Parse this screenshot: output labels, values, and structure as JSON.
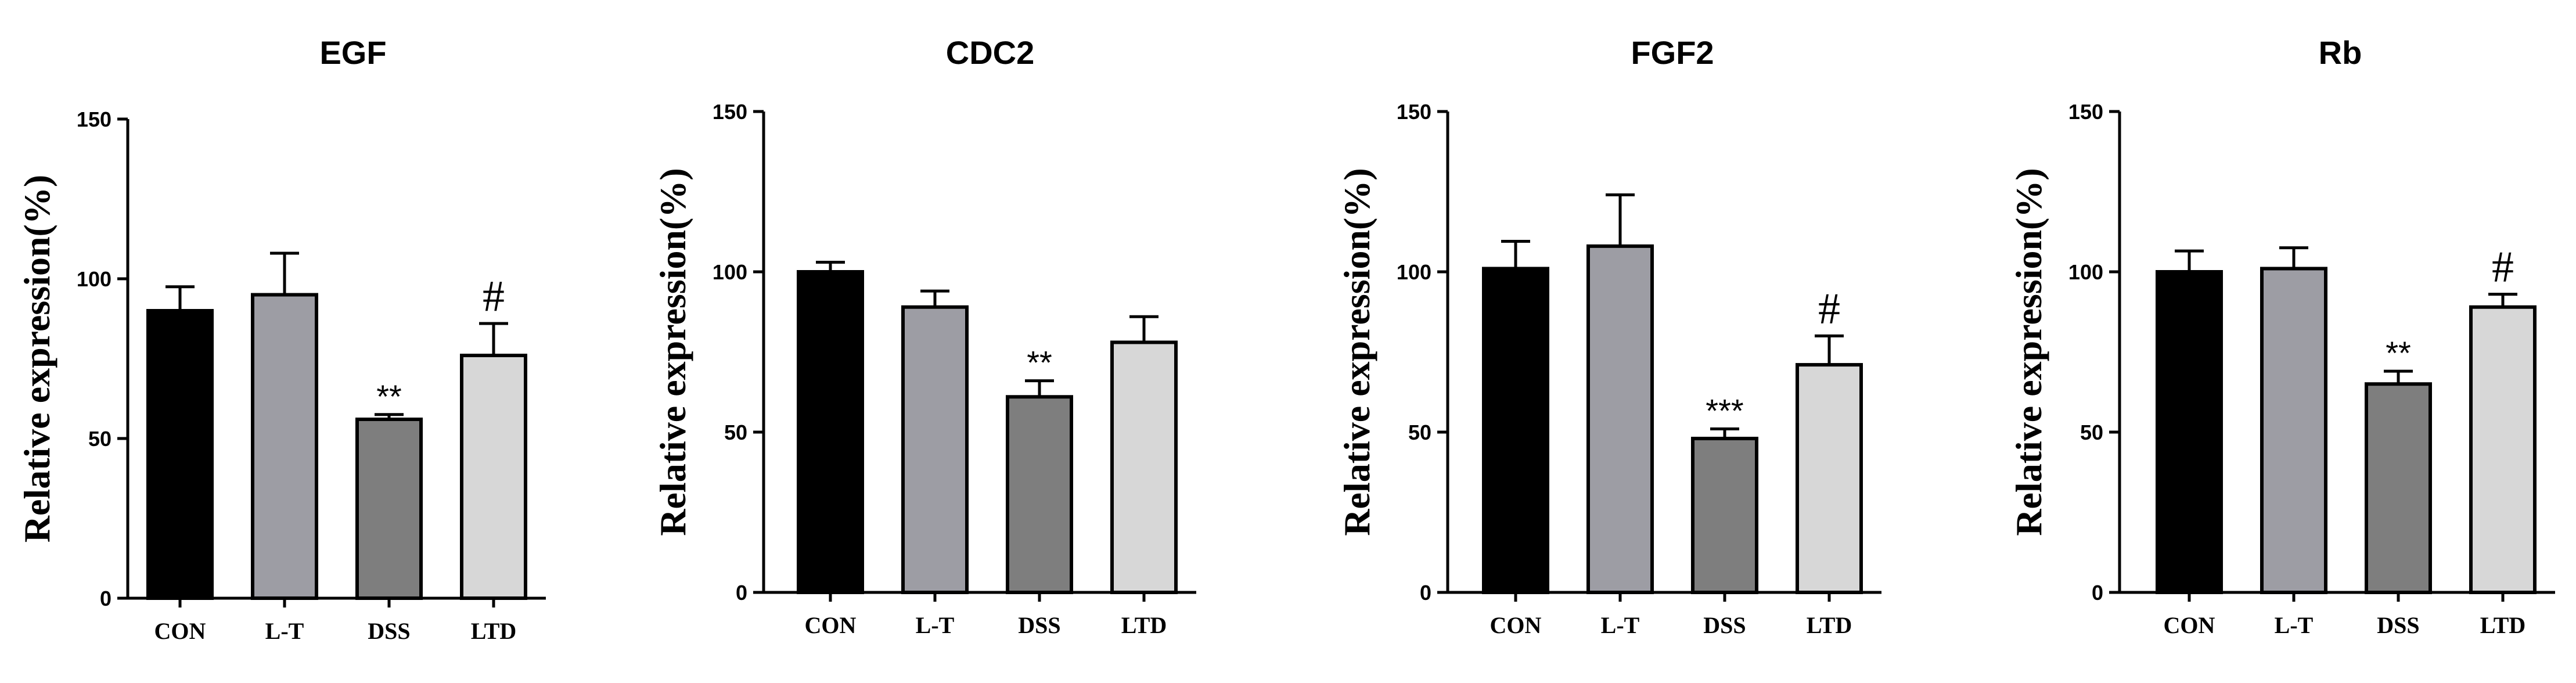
{
  "chart_data": [
    {
      "type": "bar",
      "title": "EGF",
      "ylabel": "Relative expression(%)",
      "xlabel": "",
      "ylim": [
        0,
        150
      ],
      "yticks": [
        0,
        50,
        100,
        150
      ],
      "categories": [
        "CON",
        "L-T",
        "DSS",
        "LTD"
      ],
      "values": [
        90,
        95,
        56,
        76
      ],
      "errors": [
        7.5,
        13,
        1.5,
        10
      ],
      "annotations": [
        "",
        "",
        "**",
        "#"
      ],
      "colors": [
        "#000000",
        "#9d9da4",
        "#7e7e7e",
        "#d7d7d7"
      ]
    },
    {
      "type": "bar",
      "title": "CDC2",
      "ylabel": "Relative expression(%)",
      "xlabel": "",
      "ylim": [
        0,
        150
      ],
      "yticks": [
        0,
        50,
        100,
        150
      ],
      "categories": [
        "CON",
        "L-T",
        "DSS",
        "LTD"
      ],
      "values": [
        100,
        89,
        61,
        78
      ],
      "errors": [
        3,
        5,
        5,
        8
      ],
      "annotations": [
        "",
        "",
        "**",
        ""
      ],
      "colors": [
        "#000000",
        "#9d9da4",
        "#7e7e7e",
        "#d7d7d7"
      ]
    },
    {
      "type": "bar",
      "title": "FGF2",
      "ylabel": "Relative expression(%)",
      "xlabel": "",
      "ylim": [
        0,
        150
      ],
      "yticks": [
        0,
        50,
        100,
        150
      ],
      "categories": [
        "CON",
        "L-T",
        "DSS",
        "LTD"
      ],
      "values": [
        101,
        108,
        48,
        71
      ],
      "errors": [
        8.5,
        16,
        3,
        9
      ],
      "annotations": [
        "",
        "",
        "***",
        "#"
      ],
      "colors": [
        "#000000",
        "#9d9da4",
        "#7e7e7e",
        "#d7d7d7"
      ]
    },
    {
      "type": "bar",
      "title": "Rb",
      "ylabel": "Relative expression(%)",
      "xlabel": "",
      "ylim": [
        0,
        150
      ],
      "yticks": [
        0,
        50,
        100,
        150
      ],
      "categories": [
        "CON",
        "L-T",
        "DSS",
        "LTD"
      ],
      "values": [
        100,
        101,
        65,
        89
      ],
      "errors": [
        6.5,
        6.5,
        4,
        4
      ],
      "annotations": [
        "",
        "",
        "**",
        "#"
      ],
      "colors": [
        "#000000",
        "#9d9da4",
        "#7e7e7e",
        "#d7d7d7"
      ]
    }
  ]
}
